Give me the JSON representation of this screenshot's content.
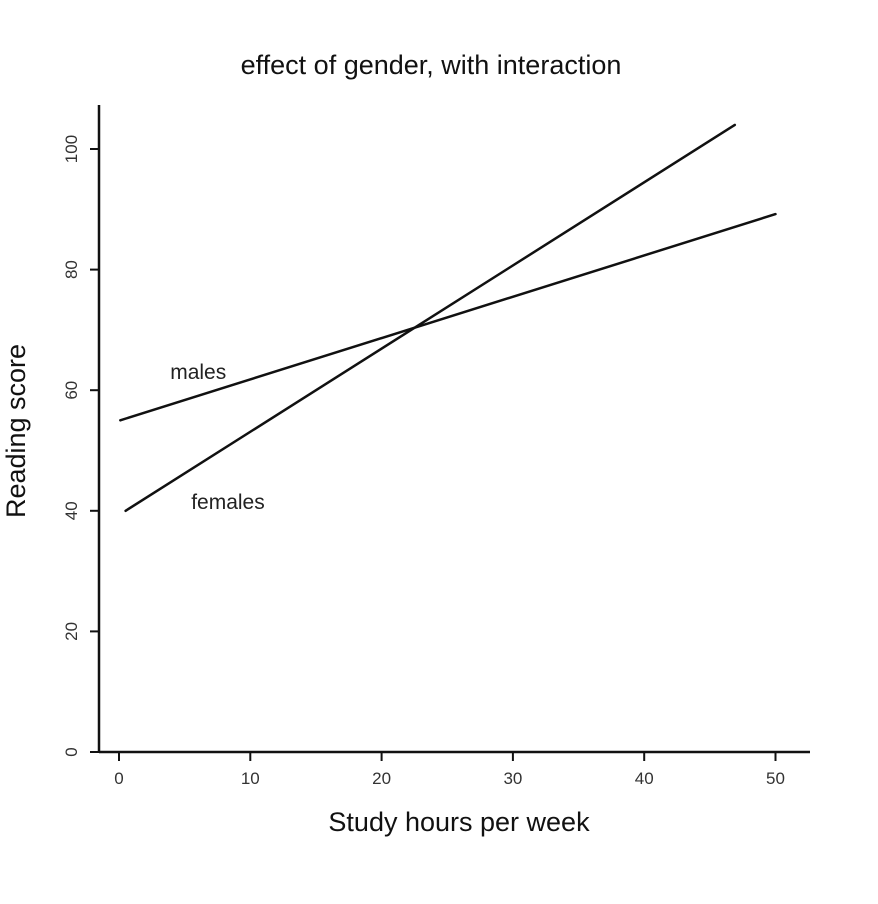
{
  "chart_data": {
    "type": "line",
    "title": "effect of gender, with interaction",
    "xlabel": "Study hours per week",
    "ylabel": "Reading score",
    "xlim": [
      0,
      60
    ],
    "ylim": [
      0,
      100
    ],
    "x_ticks": [
      0,
      10,
      20,
      30,
      40,
      50
    ],
    "y_ticks": [
      0,
      20,
      40,
      60,
      80,
      100
    ],
    "x_tick_labels": [
      "0",
      "10",
      "20",
      "30",
      "40",
      "50"
    ],
    "y_tick_labels": [
      "0",
      "20",
      "40",
      "60",
      "80",
      "100"
    ],
    "grid": false,
    "legend": "none",
    "series": [
      {
        "name": "males",
        "x": [
          0.1,
          50
        ],
        "y": [
          55,
          89.2
        ]
      },
      {
        "name": "females",
        "x": [
          0.5,
          46.9
        ],
        "y": [
          40,
          104
        ]
      }
    ],
    "annotations": [
      {
        "text": "males",
        "x": 3.9,
        "y": 63
      },
      {
        "text": "females",
        "x": 5.5,
        "y": 41.5
      }
    ]
  }
}
